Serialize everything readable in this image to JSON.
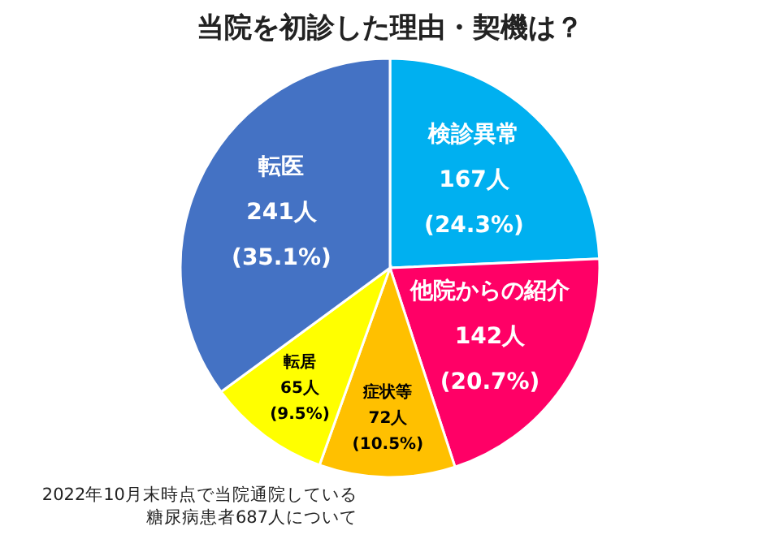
{
  "chart_data": {
    "type": "pie",
    "title": "当院を初診した理由・契機は？",
    "categories": [
      "検診異常",
      "他院からの紹介",
      "症状等",
      "転居",
      "転医"
    ],
    "values": [
      167,
      142,
      72,
      65,
      241
    ],
    "colors": [
      "#00b0f0",
      "#ff0066",
      "#ffc000",
      "#ffff00",
      "#4472c4"
    ],
    "value_labels": [
      "167人\n(24.3%)",
      "142人\n(20.7%)",
      "72人\n(10.5%)",
      "65人\n(9.5%)",
      "241人\n(35.1%)"
    ],
    "annotations": [
      "2022年10月末時点で当院通院している",
      "糖尿病患者687人について"
    ]
  }
}
